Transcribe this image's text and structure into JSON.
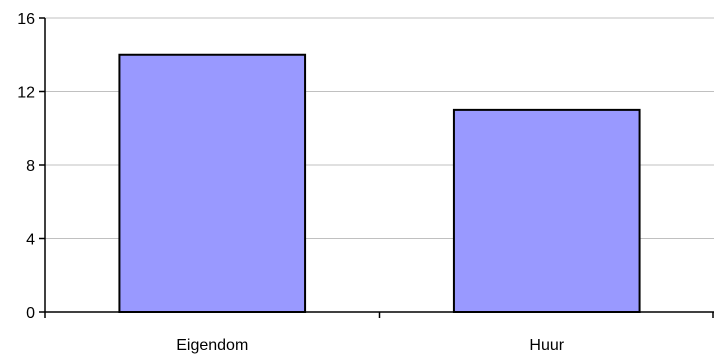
{
  "chart_data": {
    "type": "bar",
    "title": "",
    "xlabel": "",
    "ylabel": "",
    "categories": [
      "Eigendom",
      "Huur"
    ],
    "values": [
      14,
      11
    ],
    "ylim": [
      0,
      16
    ],
    "yticks": [
      0,
      4,
      8,
      12,
      16
    ],
    "grid": true,
    "legend": "none",
    "colors": {
      "bar_fill": "#9999ff",
      "bar_stroke": "#000000",
      "grid": "#c0c0c0",
      "axis": "#000000"
    }
  }
}
